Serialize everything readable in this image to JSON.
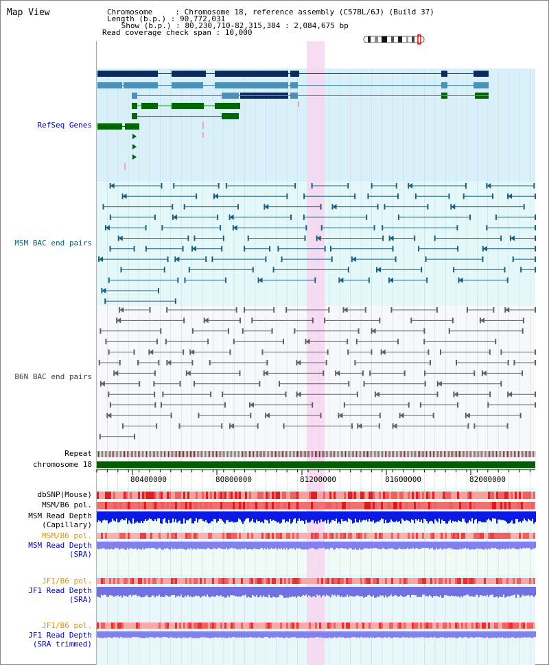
{
  "header": {
    "title": "Map View",
    "info_lines": [
      "Chromosome     : Chromosome 18, reference assembly (C57BL/6J) (Build 37)",
      "Length (b.p.) : 90,772,031",
      " Show (b.p.) : 80,230,710-82,315,384 : 2,084,675 bp",
      "Read coverage check span : 10,000"
    ]
  },
  "colors": {
    "refseq_bg": "#d8f0fa",
    "msm_bg": "#e4f8fa",
    "b6n_bg": "#f6f8fa",
    "track_bg": "#f0faf6",
    "highlight": "#f7d6f0",
    "refseq_label": "#0000b0",
    "msm_label": "#006080",
    "b6n_label": "#404040",
    "orange": "#e09000",
    "blue": "#0000c0",
    "chrom_green": "#006000"
  },
  "tracks": {
    "refseq": "RefSeq Genes",
    "msm_bac": "MSM BAC end pairs",
    "b6n_bac": "B6N BAC end pairs",
    "repeat": "Repeat",
    "chromosome": "chromosome 18",
    "dbsnp": "dbSNP(Mouse)",
    "msm_b6_pol_1": "MSM/B6 pol.",
    "msm_read_depth_cap_1": "MSM Read Depth",
    "msm_read_depth_cap_2": "(Capillary)",
    "msm_b6_pol_2": "MSM/B6 pol.",
    "msm_read_depth_sra_1": "MSM Read Depth",
    "msm_read_depth_sra_2": "(SRA)",
    "jf1_b6_pol_1": "JF1/B6 pol.",
    "jf1_read_depth_sra_1": "JF1 Read Depth",
    "jf1_read_depth_sra_2": "(SRA)",
    "jf1_b6_pol_2": "JF1/B6 pol.",
    "jf1_read_depth_trim_1": "JF1 Read Depth",
    "jf1_read_depth_trim_2": "(SRA trimmed)"
  },
  "axis": {
    "ticks": [
      "80400000",
      "80800000",
      "81200000",
      "81600000",
      "82000000"
    ]
  }
}
